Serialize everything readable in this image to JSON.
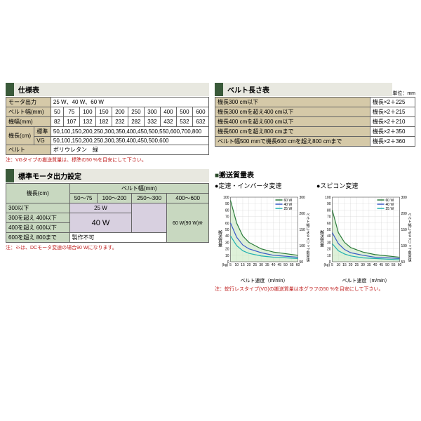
{
  "spec": {
    "title": "仕様表",
    "rows": [
      {
        "label": "モータ出力",
        "values": [
          "25 W、40 W、60 W"
        ],
        "span": 10
      },
      {
        "label": "ベルト幅(mm)",
        "values": [
          "50",
          "75",
          "100",
          "150",
          "200",
          "250",
          "300",
          "400",
          "500",
          "600"
        ]
      },
      {
        "label": "機幅(mm)",
        "values": [
          "82",
          "107",
          "132",
          "182",
          "232",
          "282",
          "332",
          "432",
          "532",
          "632"
        ]
      },
      {
        "label": "機長(cm)",
        "sub": "標準",
        "values": [
          "50,100,150,200,250,300,350,400,450,500,550,600,700,800"
        ],
        "span": 10
      },
      {
        "label": "",
        "sub": "VG",
        "values": [
          "50,100,150,200,250,300,350,400,450,500,600"
        ],
        "span": 10
      },
      {
        "label": "ベルト",
        "values": [
          "ポリウレタン　緑"
        ],
        "span": 10
      }
    ],
    "note": "注：VGタイプの搬送質量は、標準の50 %を目安にして下さい。"
  },
  "beltLen": {
    "title": "ベルト長さ表",
    "unit": "単位：mm",
    "rows": [
      {
        "cond": "機長300 cm以下",
        "val": "機長×2＋225"
      },
      {
        "cond": "機長300 cmを超え400 cm以下",
        "val": "機長×2＋215"
      },
      {
        "cond": "機長400 cmを超え600 cm以下",
        "val": "機長×2＋210"
      },
      {
        "cond": "機長600 cmを超え800 cmまで",
        "val": "機長×2＋350"
      },
      {
        "cond": "ベルト幅500 mmで機長600 cmを超え800 cmまで",
        "val": "機長×2＋360"
      }
    ]
  },
  "motor": {
    "title": "標準モータ出力設定",
    "colHeader": "ベルト幅(mm)",
    "rowHeader": "機長(cm)",
    "cols": [
      "50〜75",
      "100〜200",
      "250〜300",
      "400〜600"
    ],
    "rows": [
      "300以下",
      "300を超え 400以下",
      "400を超え 600以下",
      "600を超え 800まで"
    ],
    "v25": "25 W",
    "v40": "40 W",
    "v60": "60 W(90 W)※",
    "nofab": "製作不可",
    "note": "注：※は、DCモータ変速の場合90 Wになります。"
  },
  "transport": {
    "title": "搬送質量表",
    "chart1Title": "●定速・インバータ変速",
    "chart2Title": "●スピコン変速",
    "yLabel": "搬送質量",
    "yUnit": "(kg)",
    "y2Label": "ベルト幅によるスリップ限界値",
    "y2Unit": "mm",
    "xLabel": "ベルト速度（m/min）",
    "series": [
      {
        "name": "60 W",
        "color": "#2a7a3a"
      },
      {
        "name": "40 W",
        "color": "#3a5ac8"
      },
      {
        "name": "25 W",
        "color": "#20b0b0"
      }
    ],
    "yticks": [
      0,
      10,
      20,
      30,
      40,
      50,
      60,
      70,
      80,
      90,
      100
    ],
    "xticks": [
      5,
      10,
      15,
      20,
      25,
      30,
      35,
      40,
      45,
      50,
      55,
      60
    ],
    "y2ticks": [
      50,
      100,
      150,
      200,
      300
    ],
    "chart1": {
      "fill_color": "#c8e8c0",
      "s60": [
        [
          5,
          95
        ],
        [
          10,
          60
        ],
        [
          15,
          40
        ],
        [
          20,
          30
        ],
        [
          30,
          20
        ],
        [
          40,
          15
        ],
        [
          60,
          10
        ]
      ],
      "s40": [
        [
          5,
          60
        ],
        [
          10,
          38
        ],
        [
          15,
          26
        ],
        [
          20,
          20
        ],
        [
          30,
          14
        ],
        [
          40,
          10
        ],
        [
          60,
          7
        ]
      ],
      "s25": [
        [
          5,
          40
        ],
        [
          10,
          25
        ],
        [
          15,
          17
        ],
        [
          20,
          13
        ],
        [
          30,
          9
        ],
        [
          40,
          7
        ],
        [
          60,
          5
        ]
      ]
    },
    "chart2": {
      "fill_color": "#c8e8c0",
      "s60": [
        [
          5,
          80
        ],
        [
          10,
          45
        ],
        [
          15,
          30
        ],
        [
          20,
          22
        ],
        [
          30,
          15
        ],
        [
          40,
          11
        ],
        [
          60,
          7
        ]
      ],
      "s40": [
        [
          5,
          45
        ],
        [
          10,
          28
        ],
        [
          15,
          19
        ],
        [
          20,
          14
        ],
        [
          30,
          10
        ],
        [
          40,
          7
        ],
        [
          60,
          5
        ]
      ],
      "s25": [
        [
          5,
          28
        ],
        [
          10,
          17
        ],
        [
          15,
          12
        ],
        [
          20,
          9
        ],
        [
          30,
          6
        ],
        [
          40,
          5
        ],
        [
          60,
          3
        ]
      ]
    },
    "note": "注：蛇行レスタイプ(VG)の搬送質量は本グラフの50 %を目安にして下さい。"
  }
}
